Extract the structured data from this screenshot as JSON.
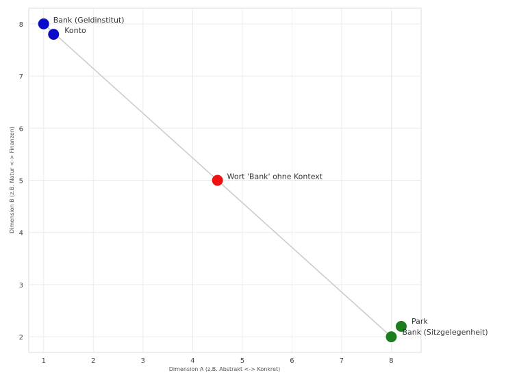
{
  "chart_data": {
    "type": "scatter",
    "title": "",
    "xlabel": "Dimension A (z.B. Abstrakt <-> Konkret)",
    "ylabel": "Dimension B (z.B. Natur <-> Finanzen)",
    "xlim": [
      0.7,
      8.6
    ],
    "ylim": [
      1.7,
      8.3
    ],
    "xticks": [
      1,
      2,
      3,
      4,
      5,
      6,
      7,
      8
    ],
    "yticks": [
      2,
      3,
      4,
      5,
      6,
      7,
      8
    ],
    "grid": true,
    "points": [
      {
        "label": "Bank (Geldinstitut)",
        "x": 1.0,
        "y": 8.0,
        "color": "#0a0ac8"
      },
      {
        "label": "Konto",
        "x": 1.2,
        "y": 7.8,
        "color": "#0a0ac8"
      },
      {
        "label": "Wort 'Bank' ohne Kontext",
        "x": 4.5,
        "y": 5.0,
        "color": "#ee1111"
      },
      {
        "label": "Park",
        "x": 8.2,
        "y": 2.2,
        "color": "#1e7d1e"
      },
      {
        "label": "Bank (Sitzgelegenheit)",
        "x": 8.0,
        "y": 2.0,
        "color": "#1e7d1e"
      }
    ],
    "lines": [
      {
        "from": [
          1.0,
          8.0
        ],
        "to": [
          4.5,
          5.0
        ],
        "color": "#cccccc"
      },
      {
        "from": [
          4.5,
          5.0
        ],
        "to": [
          8.0,
          2.0
        ],
        "color": "#cccccc"
      }
    ]
  }
}
